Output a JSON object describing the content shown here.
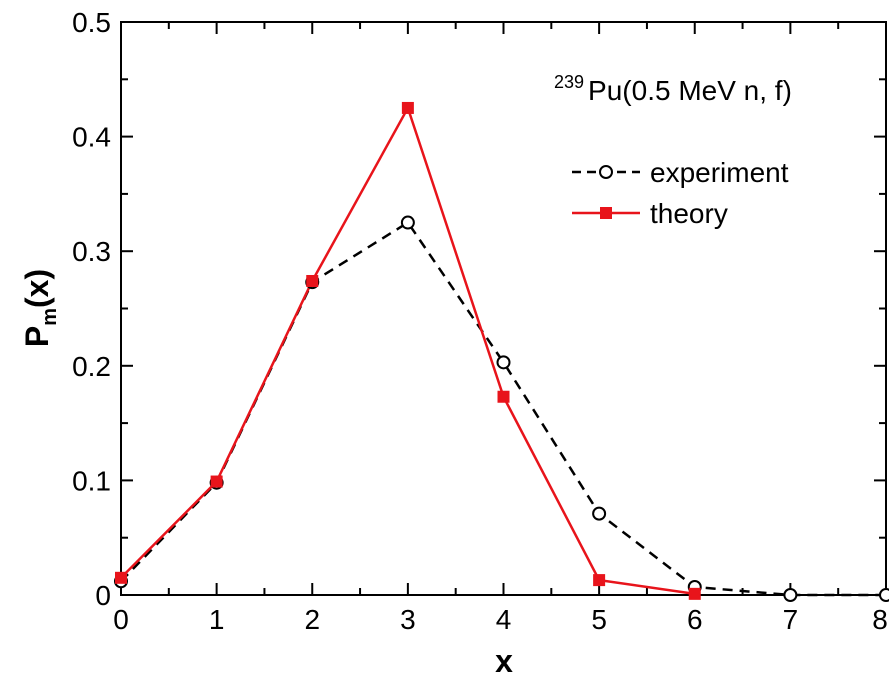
{
  "chart_data": {
    "type": "line",
    "title": "",
    "annotation": {
      "superscript": "239",
      "text": "Pu(0.5 MeV n, f)"
    },
    "xlabel": "x",
    "ylabel": {
      "main": "P",
      "sub": "m",
      "rest": "(x)"
    },
    "xlim": [
      0,
      8
    ],
    "ylim": [
      0,
      0.5
    ],
    "x_ticks": [
      "0",
      "1",
      "2",
      "3",
      "4",
      "5",
      "6",
      "7",
      "8"
    ],
    "y_ticks": [
      "0",
      "0.1",
      "0.2",
      "0.3",
      "0.4",
      "0.5"
    ],
    "x_tick_values": [
      0,
      1,
      2,
      3,
      4,
      5,
      6,
      7,
      8
    ],
    "y_tick_values": [
      0,
      0.1,
      0.2,
      0.3,
      0.4,
      0.5
    ],
    "grid": false,
    "legend_position": "top-right",
    "series": [
      {
        "name": "experiment",
        "style": "dashed",
        "marker": "open-circle",
        "color": "#000000",
        "x": [
          0,
          1,
          2,
          3,
          4,
          5,
          6,
          7,
          8
        ],
        "y": [
          0.012,
          0.098,
          0.273,
          0.325,
          0.203,
          0.071,
          0.007,
          0.0,
          0.0
        ]
      },
      {
        "name": "theory",
        "style": "solid",
        "marker": "filled-square",
        "color": "#e8141b",
        "x": [
          0,
          1,
          2,
          3,
          4,
          5,
          6
        ],
        "y": [
          0.015,
          0.099,
          0.274,
          0.425,
          0.173,
          0.013,
          0.001
        ]
      }
    ]
  }
}
